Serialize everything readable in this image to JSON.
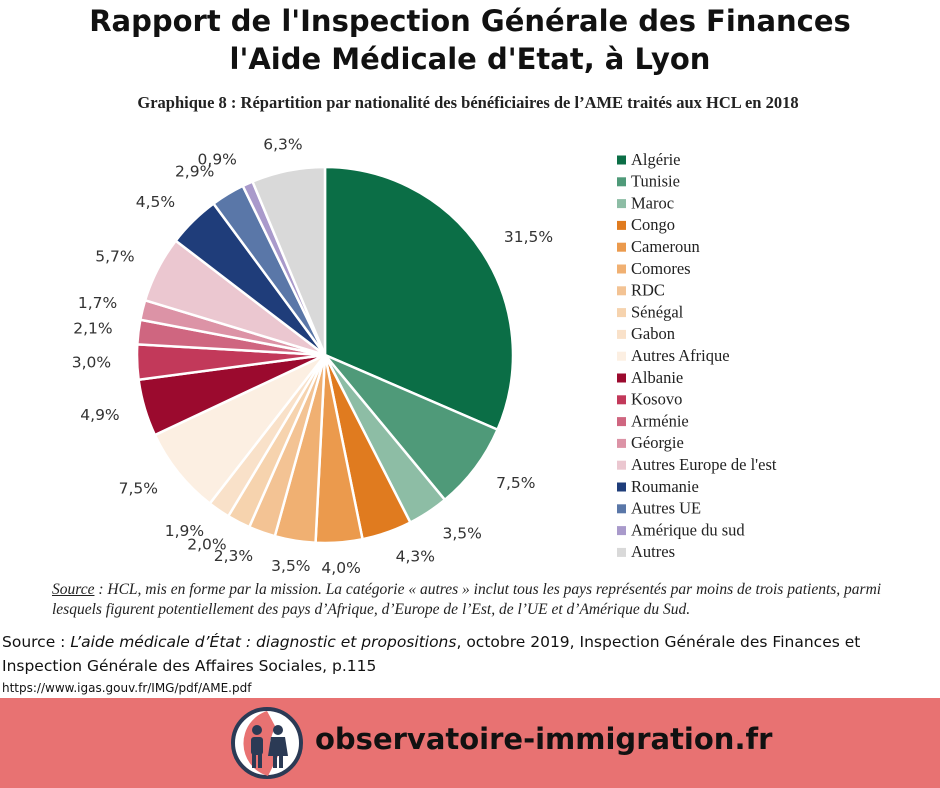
{
  "header": {
    "lines": [
      "Rapport de l'Inspection Générale des Finances",
      "l'Aide Médicale d'Etat, à Lyon"
    ]
  },
  "chart_data": {
    "type": "pie",
    "title": "Graphique 8 : Répartition par nationalité des bénéficiaires de l’AME traités aux HCL en 2018",
    "categories": [
      "Algérie",
      "Tunisie",
      "Maroc",
      "Congo",
      "Cameroun",
      "Comores",
      "RDC",
      "Sénégal",
      "Gabon",
      "Autres Afrique",
      "Albanie",
      "Kosovo",
      "Arménie",
      "Géorgie",
      "Autres Europe de l'est",
      "Roumanie",
      "Autres UE",
      "Amérique du sud",
      "Autres"
    ],
    "values": [
      31.5,
      7.5,
      3.5,
      4.3,
      4.0,
      3.5,
      2.3,
      2.0,
      1.9,
      7.5,
      4.9,
      3.0,
      2.1,
      1.7,
      5.7,
      4.5,
      2.9,
      0.9,
      6.3
    ],
    "value_labels": [
      "31,5%",
      "7,5%",
      "3,5%",
      "4,3%",
      "4,0%",
      "3,5%",
      "2,3%",
      "2,0%",
      "1,9%",
      "7,5%",
      "4,9%",
      "3,0%",
      "2,1%",
      "1,7%",
      "5,7%",
      "4,5%",
      "2,9%",
      "0,9%",
      "6,3%"
    ],
    "colors": [
      "#0b6e46",
      "#4f9a79",
      "#8dbda5",
      "#e07b1f",
      "#eb9a4d",
      "#f0b072",
      "#f3c394",
      "#f6d3ae",
      "#f9e1c9",
      "#fcefe2",
      "#9b0a2e",
      "#c2395a",
      "#cf6680",
      "#dc93a6",
      "#ebc7d0",
      "#1f3d7a",
      "#5a77a8",
      "#a99acb",
      "#d9d9d9"
    ],
    "legend": "right"
  },
  "chart_note": {
    "label": "Source",
    "text": " : HCL, mis en forme par la mission. La catégorie « autres » inclut tous les pays représentés par moins de trois patients, parmi lesquels figurent potentiellement des pays d’Afrique, d’Europe de l’Est, de l’UE et d’Amérique du Sud."
  },
  "source": {
    "prefix": "Source : ",
    "work": "L’aide médicale d’État : diagnostic et propositions",
    "rest": ", octobre 2019, Inspection Générale des Finances et Inspection Générale des Affaires Sociales, p.115",
    "url": "https://www.igas.gouv.fr/IMG/pdf/AME.pdf"
  },
  "footer": {
    "brand": "observatoire-immigration.fr"
  }
}
